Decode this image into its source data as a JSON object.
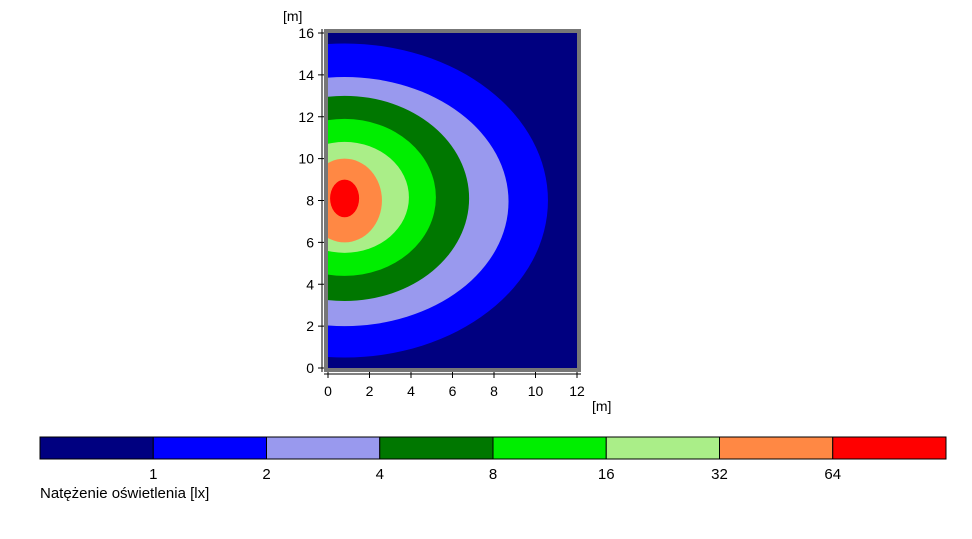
{
  "chart_data": {
    "type": "heatmap",
    "title": "",
    "xlabel": "[m]",
    "ylabel": "[m]",
    "xlim": [
      0,
      12
    ],
    "ylim": [
      0,
      16
    ],
    "x_ticks": [
      "0",
      "2",
      "4",
      "6",
      "8",
      "10",
      "12"
    ],
    "y_ticks": [
      "0",
      "2",
      "4",
      "6",
      "8",
      "10",
      "12",
      "14",
      "16"
    ],
    "x_tick_values": [
      0,
      2,
      4,
      6,
      8,
      10,
      12
    ],
    "y_tick_values": [
      0,
      2,
      4,
      6,
      8,
      10,
      12,
      14,
      16
    ],
    "background_color": "#000080",
    "source_center": [
      0.8,
      8.1
    ],
    "contour_levels": [
      {
        "level": 1,
        "color": "#0000ff",
        "extent_x": 10.6,
        "extent_y_low": 0.5,
        "extent_y_high": 15.5
      },
      {
        "level": 2,
        "color": "#9999ee",
        "extent_x": 8.7,
        "extent_y_low": 2.0,
        "extent_y_high": 13.9
      },
      {
        "level": 4,
        "color": "#007700",
        "extent_x": 6.8,
        "extent_y_low": 3.2,
        "extent_y_high": 13.0
      },
      {
        "level": 8,
        "color": "#00ee00",
        "extent_x": 5.2,
        "extent_y_low": 4.4,
        "extent_y_high": 11.9
      },
      {
        "level": 16,
        "color": "#aaee88",
        "extent_x": 3.9,
        "extent_y_low": 5.5,
        "extent_y_high": 10.8
      },
      {
        "level": 32,
        "color": "#ff8844",
        "extent_x": 2.6,
        "extent_y_low": 6.0,
        "extent_y_high": 10.0
      },
      {
        "level": 64,
        "color": "#ff0000",
        "extent_x": 1.5,
        "extent_y_low": 7.2,
        "extent_y_high": 9.0
      }
    ],
    "legend": {
      "title": "Natężenie oświetlenia [lx]",
      "labels": [
        "1",
        "2",
        "4",
        "8",
        "16",
        "32",
        "64"
      ],
      "colors": [
        "#000080",
        "#0000ff",
        "#9999ee",
        "#007700",
        "#00ee00",
        "#aaee88",
        "#ff8844",
        "#ff0000"
      ],
      "placement": "bottom"
    }
  }
}
